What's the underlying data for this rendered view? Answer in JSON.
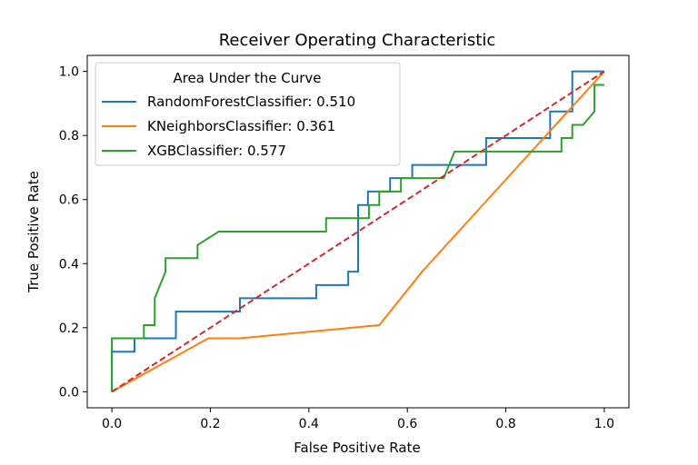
{
  "chart_data": {
    "type": "line",
    "title": "Receiver Operating Characteristic",
    "xlabel": "False Positive Rate",
    "ylabel": "True Positive Rate",
    "xlim": [
      -0.05,
      1.05
    ],
    "ylim": [
      -0.05,
      1.05
    ],
    "xticks": [
      "0.0",
      "0.2",
      "0.4",
      "0.6",
      "0.8",
      "1.0"
    ],
    "yticks": [
      "0.0",
      "0.2",
      "0.4",
      "0.6",
      "0.8",
      "1.0"
    ],
    "grid": false,
    "legend": {
      "title": "Area Under the Curve",
      "placement": "upper-left"
    },
    "series": [
      {
        "name": "RandomForestClassifier: 0.510",
        "color": "#1f77b4",
        "step": true,
        "x": [
          0.0,
          0.0,
          0.046,
          0.046,
          0.13,
          0.13,
          0.26,
          0.26,
          0.415,
          0.415,
          0.48,
          0.48,
          0.5,
          0.5,
          0.52,
          0.52,
          0.565,
          0.565,
          0.61,
          0.61,
          0.76,
          0.76,
          0.89,
          0.89,
          0.935,
          0.935,
          1.0
        ],
        "y": [
          0.0,
          0.125,
          0.125,
          0.167,
          0.167,
          0.25,
          0.25,
          0.292,
          0.292,
          0.333,
          0.333,
          0.375,
          0.375,
          0.583,
          0.583,
          0.625,
          0.625,
          0.667,
          0.667,
          0.708,
          0.708,
          0.792,
          0.792,
          0.875,
          0.875,
          1.0,
          1.0
        ]
      },
      {
        "name": "KNeighborsClassifier: 0.361",
        "color": "#ff7f0e",
        "step": false,
        "x": [
          0.0,
          0.196,
          0.26,
          0.543,
          0.63,
          1.0
        ],
        "y": [
          0.0,
          0.167,
          0.167,
          0.208,
          0.375,
          1.0
        ]
      },
      {
        "name": "XGBClassifier: 0.577",
        "color": "#2ca02c",
        "step": false,
        "x": [
          0.0,
          0.0,
          0.065,
          0.065,
          0.087,
          0.087,
          0.109,
          0.109,
          0.174,
          0.174,
          0.217,
          0.435,
          0.435,
          0.5,
          0.5,
          0.522,
          0.522,
          0.543,
          0.543,
          0.565,
          0.565,
          0.587,
          0.587,
          0.674,
          0.696,
          0.913,
          0.913,
          0.935,
          0.935,
          0.957,
          0.98,
          0.98,
          1.0
        ],
        "y": [
          0.0,
          0.167,
          0.167,
          0.208,
          0.208,
          0.292,
          0.375,
          0.417,
          0.417,
          0.458,
          0.5,
          0.5,
          0.542,
          0.542,
          0.542,
          0.542,
          0.583,
          0.583,
          0.625,
          0.625,
          0.625,
          0.625,
          0.667,
          0.667,
          0.75,
          0.75,
          0.792,
          0.792,
          0.833,
          0.833,
          0.875,
          0.958,
          0.958
        ]
      },
      {
        "name": "",
        "color": "#d62728",
        "dashed": true,
        "step": false,
        "x": [
          0.0,
          1.0
        ],
        "y": [
          0.0,
          1.0
        ]
      }
    ]
  }
}
